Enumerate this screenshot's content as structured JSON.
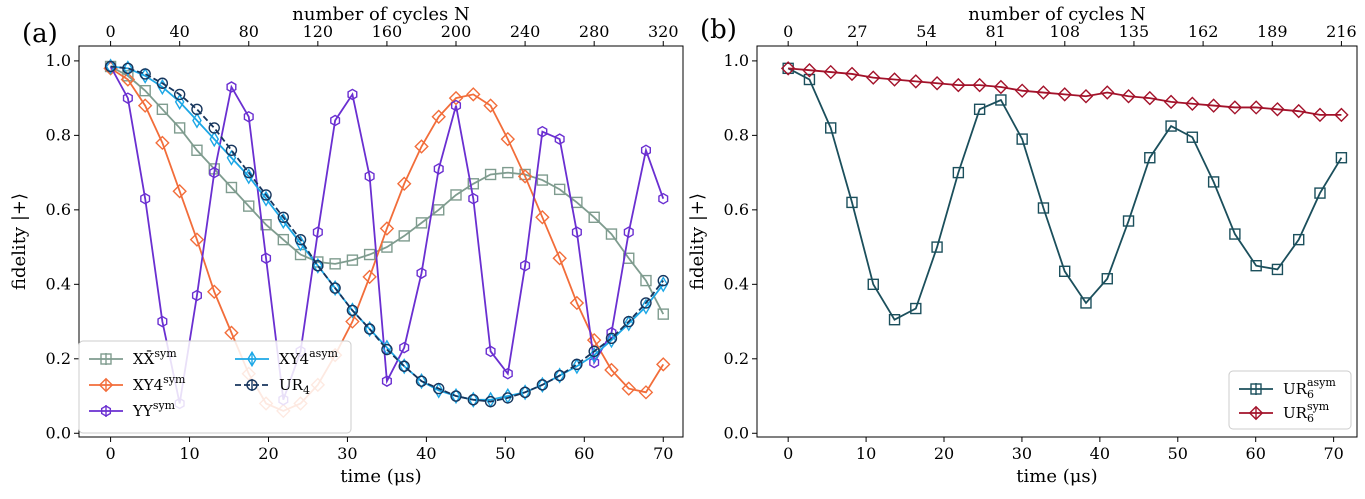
{
  "chart_data": [
    {
      "panel_label": "(a)",
      "type": "line",
      "xlabel": "time (μs)",
      "ylabel": "fidelity |+⟩",
      "top_xlabel": "number of cycles N",
      "xlim": [
        -4,
        72.5
      ],
      "ylim": [
        -0.01,
        1.04
      ],
      "xticks": [
        0,
        10,
        20,
        30,
        40,
        50,
        60,
        70
      ],
      "xtick_labels": [
        "0",
        "10",
        "20",
        "30",
        "40",
        "50",
        "60",
        "70"
      ],
      "yticks": [
        0.0,
        0.2,
        0.4,
        0.6,
        0.8,
        1.0
      ],
      "ytick_labels": [
        "0.0",
        "0.2",
        "0.4",
        "0.6",
        "0.8",
        "1.0"
      ],
      "top_xticks_time": [
        0,
        8.75,
        17.5,
        26.25,
        35,
        43.75,
        52.5,
        61.25,
        70
      ],
      "top_xtick_labels": [
        "0",
        "40",
        "80",
        "120",
        "160",
        "200",
        "240",
        "280",
        "320"
      ],
      "legend": {
        "position": "lower-left",
        "ncol": 2
      },
      "series": [
        {
          "name": "XX̄sym",
          "label_main": "XX̄",
          "label_sup": "sym",
          "color": "#7f9c8f",
          "marker": "square",
          "x": [
            0,
            2.19,
            4.38,
            6.56,
            8.75,
            10.94,
            13.13,
            15.31,
            17.5,
            19.69,
            21.88,
            24.06,
            26.25,
            28.44,
            30.63,
            32.81,
            35,
            37.19,
            39.38,
            41.56,
            43.75,
            45.94,
            48.13,
            50.31,
            52.5,
            54.69,
            56.88,
            59.06,
            61.25,
            63.44,
            65.63,
            67.81,
            70
          ],
          "y": [
            0.985,
            0.96,
            0.92,
            0.87,
            0.82,
            0.76,
            0.71,
            0.66,
            0.61,
            0.56,
            0.52,
            0.48,
            0.46,
            0.455,
            0.465,
            0.48,
            0.5,
            0.53,
            0.565,
            0.6,
            0.64,
            0.67,
            0.695,
            0.7,
            0.695,
            0.68,
            0.655,
            0.62,
            0.58,
            0.535,
            0.47,
            0.41,
            0.32
          ]
        },
        {
          "name": "XY4sym",
          "label_main": "XY4",
          "label_sup": "sym",
          "color": "#f26d3a",
          "marker": "diamond",
          "x": [
            0,
            2.19,
            4.38,
            6.56,
            8.75,
            10.94,
            13.13,
            15.31,
            17.5,
            19.69,
            21.88,
            24.06,
            26.25,
            28.44,
            30.63,
            32.81,
            35,
            37.19,
            39.38,
            41.56,
            43.75,
            45.94,
            48.13,
            50.31,
            52.5,
            54.69,
            56.88,
            59.06,
            61.25,
            63.44,
            65.63,
            67.81,
            70
          ],
          "y": [
            0.98,
            0.95,
            0.88,
            0.78,
            0.65,
            0.52,
            0.38,
            0.27,
            0.16,
            0.08,
            0.06,
            0.08,
            0.13,
            0.21,
            0.3,
            0.42,
            0.55,
            0.67,
            0.77,
            0.85,
            0.9,
            0.91,
            0.88,
            0.79,
            0.69,
            0.58,
            0.47,
            0.35,
            0.25,
            0.17,
            0.12,
            0.11,
            0.185
          ]
        },
        {
          "name": "YYsym",
          "label_main": "YY",
          "label_sup": "sym",
          "color": "#6a2fd1",
          "marker": "hexagon",
          "x": [
            0,
            2.19,
            4.38,
            6.56,
            8.75,
            10.94,
            13.13,
            15.31,
            17.5,
            19.69,
            21.88,
            24.06,
            26.25,
            28.44,
            30.63,
            32.81,
            35,
            37.19,
            39.38,
            41.56,
            43.75,
            45.94,
            48.13,
            50.31,
            52.5,
            54.69,
            56.88,
            59.06,
            61.25,
            63.44,
            65.63,
            67.81,
            70
          ],
          "y": [
            0.985,
            0.9,
            0.63,
            0.3,
            0.08,
            0.37,
            0.7,
            0.93,
            0.85,
            0.47,
            0.09,
            0.22,
            0.54,
            0.84,
            0.91,
            0.69,
            0.14,
            0.23,
            0.43,
            0.71,
            0.88,
            0.63,
            0.22,
            0.16,
            0.45,
            0.81,
            0.79,
            0.54,
            0.19,
            0.27,
            0.54,
            0.76,
            0.63
          ]
        },
        {
          "name": "XY4asym",
          "label_main": "XY4",
          "label_sup": "asym",
          "color": "#1ca7e6",
          "marker": "thin-diamond",
          "x": [
            0,
            2.19,
            4.38,
            6.56,
            8.75,
            10.94,
            13.13,
            15.31,
            17.5,
            19.69,
            21.88,
            24.06,
            26.25,
            28.44,
            30.63,
            32.81,
            35,
            37.19,
            39.38,
            41.56,
            43.75,
            45.94,
            48.13,
            50.31,
            52.5,
            54.69,
            56.88,
            59.06,
            61.25,
            63.44,
            65.63,
            67.81,
            70
          ],
          "y": [
            0.985,
            0.98,
            0.96,
            0.93,
            0.89,
            0.84,
            0.79,
            0.74,
            0.69,
            0.63,
            0.57,
            0.51,
            0.45,
            0.39,
            0.33,
            0.28,
            0.23,
            0.18,
            0.14,
            0.115,
            0.1,
            0.09,
            0.09,
            0.1,
            0.11,
            0.13,
            0.155,
            0.18,
            0.21,
            0.25,
            0.295,
            0.34,
            0.4
          ]
        },
        {
          "name": "UR4",
          "label_main": "UR",
          "label_sub": "4",
          "color": "#17365d",
          "marker": "circle",
          "dashed": true,
          "x": [
            0,
            2.19,
            4.38,
            6.56,
            8.75,
            10.94,
            13.13,
            15.31,
            17.5,
            19.69,
            21.88,
            24.06,
            26.25,
            28.44,
            30.63,
            32.81,
            35,
            37.19,
            39.38,
            41.56,
            43.75,
            45.94,
            48.13,
            50.31,
            52.5,
            54.69,
            56.88,
            59.06,
            61.25,
            63.44,
            65.63,
            67.81,
            70
          ],
          "y": [
            0.985,
            0.98,
            0.965,
            0.94,
            0.91,
            0.87,
            0.82,
            0.76,
            0.7,
            0.64,
            0.58,
            0.52,
            0.45,
            0.39,
            0.33,
            0.28,
            0.225,
            0.18,
            0.14,
            0.12,
            0.1,
            0.09,
            0.085,
            0.095,
            0.11,
            0.13,
            0.155,
            0.185,
            0.22,
            0.255,
            0.3,
            0.35,
            0.41
          ]
        }
      ]
    },
    {
      "panel_label": "(b)",
      "type": "line",
      "xlabel": "time (μs)",
      "ylabel": "fidelity |+⟩",
      "top_xlabel": "number of cycles N",
      "xlim": [
        -4,
        73
      ],
      "ylim": [
        -0.01,
        1.04
      ],
      "xticks": [
        0,
        10,
        20,
        30,
        40,
        50,
        60,
        70
      ],
      "xtick_labels": [
        "0",
        "10",
        "20",
        "30",
        "40",
        "50",
        "60",
        "70"
      ],
      "yticks": [
        0.0,
        0.2,
        0.4,
        0.6,
        0.8,
        1.0
      ],
      "ytick_labels": [
        "0.0",
        "0.2",
        "0.4",
        "0.6",
        "0.8",
        "1.0"
      ],
      "top_xticks_time": [
        0,
        8.875,
        17.75,
        26.625,
        35.5,
        44.375,
        53.25,
        62.125,
        71
      ],
      "top_xtick_labels": [
        "0",
        "27",
        "54",
        "81",
        "108",
        "135",
        "162",
        "189",
        "216"
      ],
      "legend": {
        "position": "lower-right",
        "ncol": 1
      },
      "series": [
        {
          "name": "UR6asym",
          "label_main": "UR",
          "label_sub": "6",
          "label_sup": "asym",
          "color": "#1b4f5c",
          "marker": "square",
          "x": [
            0,
            2.73,
            5.46,
            8.19,
            10.92,
            13.65,
            16.38,
            19.11,
            21.84,
            24.57,
            27.3,
            30.03,
            32.76,
            35.49,
            38.22,
            40.95,
            43.68,
            46.41,
            49.14,
            51.87,
            54.6,
            57.33,
            60.06,
            62.79,
            65.52,
            68.25,
            71
          ],
          "y": [
            0.98,
            0.95,
            0.82,
            0.62,
            0.4,
            0.305,
            0.335,
            0.5,
            0.7,
            0.87,
            0.895,
            0.79,
            0.605,
            0.435,
            0.35,
            0.415,
            0.57,
            0.74,
            0.825,
            0.795,
            0.675,
            0.535,
            0.45,
            0.44,
            0.52,
            0.645,
            0.74
          ]
        },
        {
          "name": "UR6sym",
          "label_main": "UR",
          "label_sub": "6",
          "label_sup": "sym",
          "color": "#a3122a",
          "marker": "diamond",
          "x": [
            0,
            2.73,
            5.46,
            8.19,
            10.92,
            13.65,
            16.38,
            19.11,
            21.84,
            24.57,
            27.3,
            30.03,
            32.76,
            35.49,
            38.22,
            40.95,
            43.68,
            46.41,
            49.14,
            51.87,
            54.6,
            57.33,
            60.06,
            62.79,
            65.52,
            68.25,
            71
          ],
          "y": [
            0.98,
            0.975,
            0.97,
            0.965,
            0.955,
            0.95,
            0.945,
            0.94,
            0.935,
            0.935,
            0.93,
            0.92,
            0.915,
            0.91,
            0.905,
            0.915,
            0.905,
            0.9,
            0.89,
            0.885,
            0.88,
            0.875,
            0.875,
            0.87,
            0.865,
            0.855,
            0.855
          ]
        }
      ]
    }
  ]
}
